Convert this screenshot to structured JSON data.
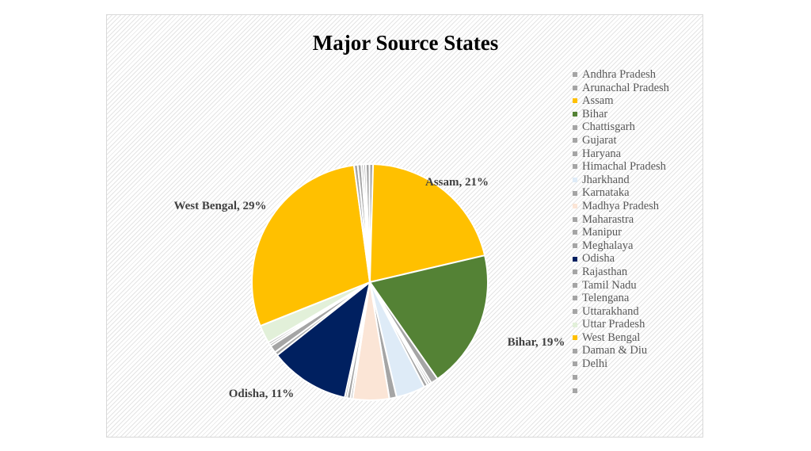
{
  "chart_data": {
    "type": "pie",
    "title": "Major Source States",
    "slices": [
      {
        "name": "Andhra Pradesh",
        "value": 0.5,
        "color": "#a5a5a5"
      },
      {
        "name": "Arunachal Pradesh",
        "value": 0.5,
        "color": "#a5a5a5"
      },
      {
        "name": "Assam",
        "value": 21,
        "color": "#ffc000"
      },
      {
        "name": "Bihar",
        "value": 19,
        "color": "#548235"
      },
      {
        "name": "Chattisgarh",
        "value": 1,
        "color": "#a5a5a5"
      },
      {
        "name": "Gujarat",
        "value": 0.3,
        "color": "#a5a5a5"
      },
      {
        "name": "Haryana",
        "value": 0.3,
        "color": "#a5a5a5"
      },
      {
        "name": "Himachal Pradesh",
        "value": 0.5,
        "color": "#a5a5a5"
      },
      {
        "name": "Jharkhand",
        "value": 4,
        "color": "#deebf7"
      },
      {
        "name": "Karnataka",
        "value": 1,
        "color": "#a5a5a5"
      },
      {
        "name": "Madhya Pradesh",
        "value": 5,
        "color": "#fbe5d6"
      },
      {
        "name": "Maharastra",
        "value": 0.3,
        "color": "#a5a5a5"
      },
      {
        "name": "Manipur",
        "value": 0.5,
        "color": "#a5a5a5"
      },
      {
        "name": "Meghalaya",
        "value": 0.3,
        "color": "#a5a5a5"
      },
      {
        "name": "Odisha",
        "value": 11,
        "color": "#002060"
      },
      {
        "name": "Rajasthan",
        "value": 0.5,
        "color": "#a5a5a5"
      },
      {
        "name": "Tamil Nadu",
        "value": 1,
        "color": "#a5a5a5"
      },
      {
        "name": "Telengana",
        "value": 0.3,
        "color": "#a5a5a5"
      },
      {
        "name": "Uttarakhand",
        "value": 0.3,
        "color": "#a5a5a5"
      },
      {
        "name": "Uttar Pradesh",
        "value": 2.5,
        "color": "#e2f0d9"
      },
      {
        "name": "West Bengal",
        "value": 29,
        "color": "#ffc000"
      },
      {
        "name": "Daman & Diu",
        "value": 0.5,
        "color": "#a5a5a5"
      },
      {
        "name": "Delhi",
        "value": 0.5,
        "color": "#a5a5a5"
      },
      {
        "name": "",
        "value": 0.3,
        "color": "#a5a5a5"
      },
      {
        "name": "",
        "value": 0.3,
        "color": "#a5a5a5"
      }
    ],
    "data_labels": [
      {
        "text": "Assam, 21%",
        "slice": "Assam"
      },
      {
        "text": "Bihar, 19%",
        "slice": "Bihar"
      },
      {
        "text": "Odisha, 11%",
        "slice": "Odisha"
      },
      {
        "text": "West Bengal, 29%",
        "slice": "West Bengal"
      }
    ],
    "legend_position": "right"
  }
}
